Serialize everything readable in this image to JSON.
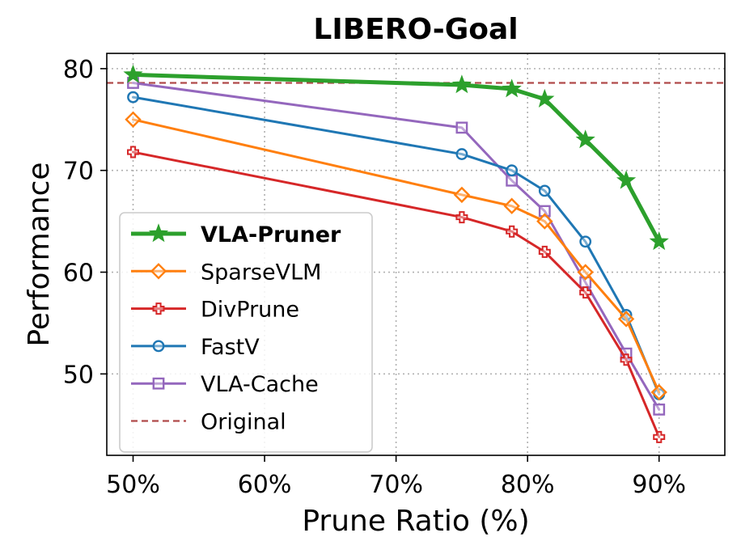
{
  "chart_data": {
    "type": "line",
    "title": "LIBERO-Goal",
    "xlabel": "Prune Ratio (%)",
    "ylabel": "Performance",
    "xlim": [
      48,
      95
    ],
    "ylim": [
      42,
      81.5
    ],
    "xticks": [
      50,
      60,
      70,
      80,
      90
    ],
    "xtick_labels": [
      "50%",
      "60%",
      "70%",
      "80%",
      "90%"
    ],
    "yticks": [
      50,
      60,
      70,
      80
    ],
    "ytick_labels": [
      "50",
      "60",
      "70",
      "80"
    ],
    "grid": true,
    "legend_position": "lower-left",
    "series": [
      {
        "name": "VLA-Pruner",
        "color": "#2ca02c",
        "marker": "star",
        "bold": true,
        "x": [
          50,
          75,
          78.8,
          81.3,
          84.4,
          87.5,
          90
        ],
        "y": [
          79.4,
          78.4,
          78.0,
          77.0,
          73.0,
          69.0,
          63.0
        ]
      },
      {
        "name": "SparseVLM",
        "color": "#ff7f0e",
        "marker": "diamond",
        "x": [
          50,
          75,
          78.8,
          81.3,
          84.4,
          87.5,
          90
        ],
        "y": [
          75.0,
          67.6,
          66.5,
          65.0,
          60.0,
          55.4,
          48.2
        ]
      },
      {
        "name": "DivPrune",
        "color": "#d62728",
        "marker": "plus",
        "x": [
          50,
          75,
          78.8,
          81.3,
          84.4,
          87.5,
          90
        ],
        "y": [
          71.8,
          65.4,
          64.0,
          62.0,
          58.0,
          51.4,
          43.8
        ]
      },
      {
        "name": "FastV",
        "color": "#1f77b4",
        "marker": "circle",
        "x": [
          50,
          75,
          78.8,
          81.3,
          84.4,
          87.5,
          90
        ],
        "y": [
          77.2,
          71.6,
          70.0,
          68.0,
          63.0,
          55.8,
          48.0
        ]
      },
      {
        "name": "VLA-Cache",
        "color": "#9467bd",
        "marker": "square",
        "x": [
          50,
          75,
          78.8,
          81.3,
          84.4,
          87.5,
          90
        ],
        "y": [
          78.6,
          74.2,
          69.0,
          66.0,
          59.0,
          52.0,
          46.5
        ]
      }
    ],
    "reference_line": {
      "name": "Original",
      "y": 78.6,
      "color": "#b04a4a",
      "style": "dashed"
    }
  }
}
